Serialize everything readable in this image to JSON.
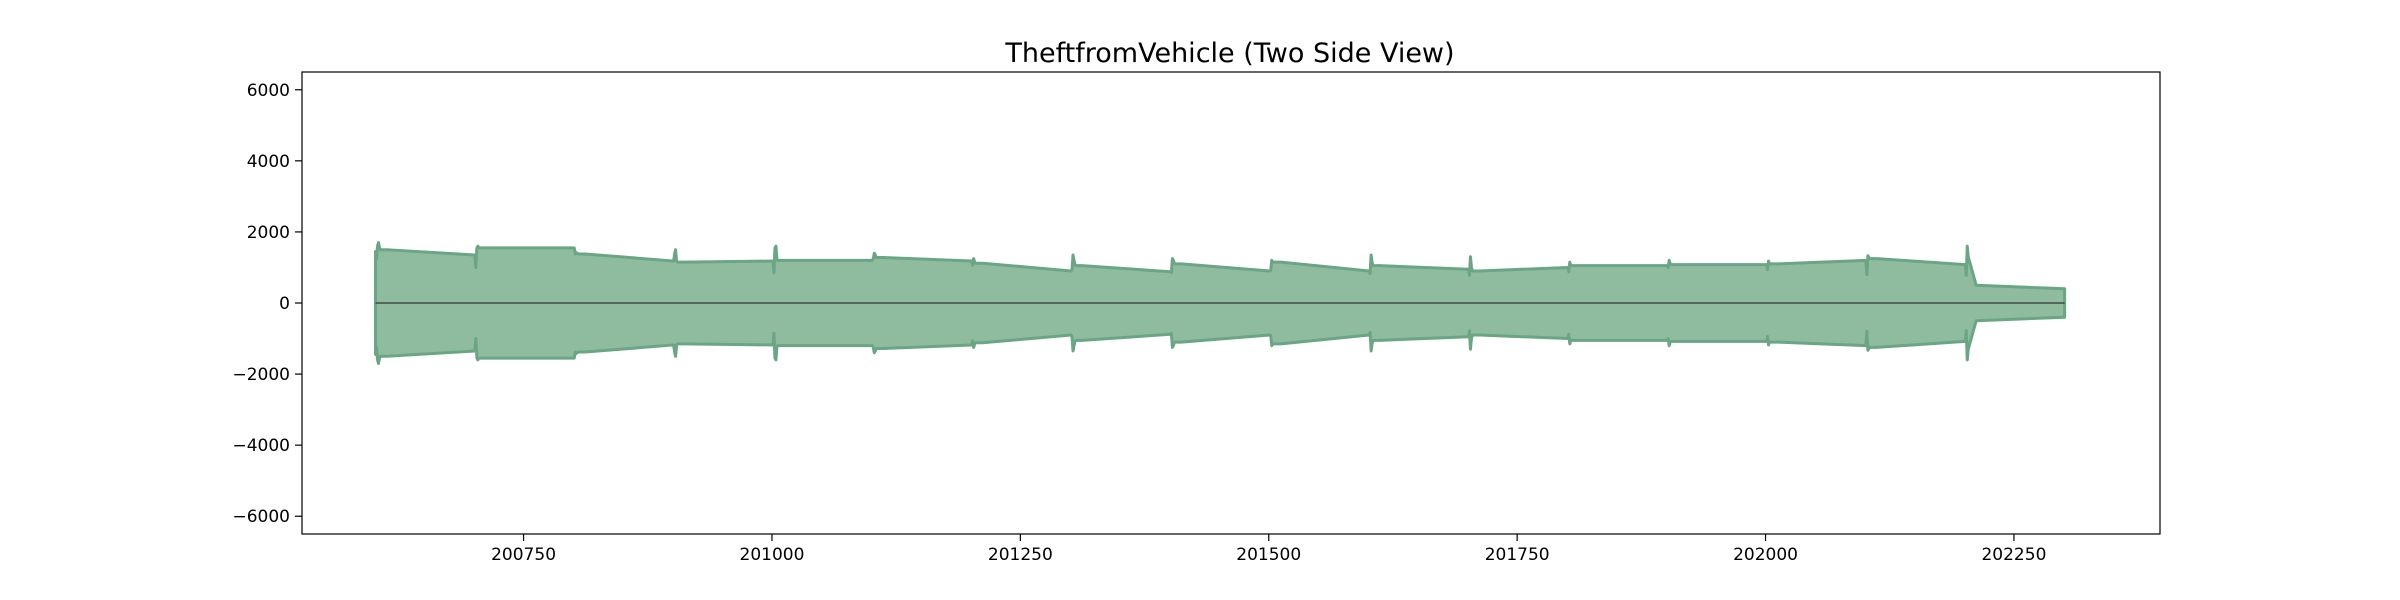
{
  "chart_data": {
    "type": "area",
    "title": "TheftfromVehicle (Two Side View)",
    "xlabel": "",
    "ylabel": "",
    "xlim": [
      200527,
      202397
    ],
    "ylim": [
      -6500,
      6500
    ],
    "x_ticks": [
      200750,
      201000,
      201250,
      201500,
      201750,
      202000,
      202250
    ],
    "y_ticks": [
      6000,
      4000,
      2000,
      0,
      -2000,
      -4000,
      -6000
    ],
    "y_tick_labels": [
      "6000",
      "4000",
      "2000",
      "0",
      "−2000",
      "−4000",
      "−6000"
    ],
    "grid": false,
    "legend": "none",
    "mirrored": true,
    "fill_color": "#8fbc9f",
    "edge_color": "#6aa584",
    "center_line_color": "#333333",
    "series": [
      {
        "x": [
          200601,
          200602,
          200603,
          200604,
          200605,
          200606,
          200607,
          200608,
          200609,
          200610,
          200611,
          200612,
          200701,
          200702,
          200703,
          200704,
          200705,
          200706,
          200707,
          200708,
          200709,
          200710,
          200711,
          200712,
          200801,
          200802,
          200803,
          200804,
          200805,
          200806,
          200807,
          200808,
          200809,
          200810,
          200811,
          200812,
          200901,
          200902,
          200903,
          200904,
          200905,
          200906,
          200907,
          200908,
          200909,
          200910,
          200911,
          200912,
          201001,
          201002,
          201003,
          201004,
          201005,
          201006,
          201007,
          201008,
          201009,
          201010,
          201011,
          201012,
          201101,
          201102,
          201103,
          201104,
          201105,
          201106,
          201107,
          201108,
          201109,
          201110,
          201111,
          201112,
          201201,
          201202,
          201203,
          201204,
          201205,
          201206,
          201207,
          201208,
          201209,
          201210,
          201211,
          201212,
          201301,
          201302,
          201303,
          201304,
          201305,
          201306,
          201307,
          201308,
          201309,
          201310,
          201311,
          201312,
          201401,
          201402,
          201403,
          201404,
          201405,
          201406,
          201407,
          201408,
          201409,
          201410,
          201411,
          201412,
          201501,
          201502,
          201503,
          201504,
          201505,
          201506,
          201507,
          201508,
          201509,
          201510,
          201511,
          201512,
          201601,
          201602,
          201603,
          201604,
          201605,
          201606,
          201607,
          201608,
          201609,
          201610,
          201611,
          201612,
          201701,
          201702,
          201703,
          201704,
          201705,
          201706,
          201707,
          201708,
          201709,
          201710,
          201711,
          201712,
          201801,
          201802,
          201803,
          201804,
          201805,
          201806,
          201807,
          201808,
          201809,
          201810,
          201811,
          201812,
          201901,
          201902,
          201903,
          201904,
          201905,
          201906,
          201907,
          201908,
          201909,
          201910,
          201911,
          201912,
          202001,
          202002,
          202003,
          202004,
          202005,
          202006,
          202007,
          202008,
          202009,
          202010,
          202011,
          202012,
          202101,
          202102,
          202103,
          202104,
          202105,
          202106,
          202107,
          202108,
          202109,
          202110,
          202111,
          202112,
          202201,
          202202,
          202203,
          202204,
          202205,
          202206,
          202207,
          202208,
          202209,
          202210,
          202211,
          202212,
          202301
        ],
        "values": [
          1450,
          1250,
          1600,
          1700,
          1550,
          1500,
          1500,
          1500,
          1500,
          1500,
          1500,
          1500,
          1350,
          1000,
          1550,
          1600,
          1550,
          1550,
          1550,
          1550,
          1550,
          1550,
          1550,
          1550,
          1550,
          1380,
          1420,
          1400,
          1380,
          1380,
          1380,
          1380,
          1380,
          1380,
          1380,
          1380,
          1180,
          1380,
          1500,
          1180,
          1150,
          1150,
          1150,
          1150,
          1150,
          1150,
          1150,
          1150,
          1180,
          850,
          1550,
          1600,
          1220,
          1200,
          1200,
          1200,
          1200,
          1200,
          1200,
          1200,
          1200,
          1250,
          1400,
          1350,
          1280,
          1280,
          1280,
          1280,
          1280,
          1280,
          1280,
          1280,
          1180,
          1060,
          1250,
          1150,
          1120,
          1120,
          1120,
          1120,
          1120,
          1120,
          1120,
          1120,
          900,
          950,
          1350,
          1200,
          1080,
          1050,
          1050,
          1050,
          1050,
          1050,
          1050,
          1050,
          880,
          850,
          1250,
          1200,
          1120,
          1100,
          1100,
          1100,
          1100,
          1100,
          1100,
          1100,
          900,
          920,
          1200,
          1150,
          1150,
          1150,
          1150,
          1150,
          1150,
          1150,
          1150,
          1150,
          900,
          830,
          1350,
          1150,
          1050,
          1050,
          1050,
          1050,
          1050,
          1050,
          1050,
          1050,
          950,
          780,
          1300,
          1000,
          900,
          900,
          900,
          900,
          900,
          900,
          900,
          900,
          1000,
          880,
          1150,
          1050,
          1050,
          1050,
          1050,
          1050,
          1050,
          1050,
          1050,
          1050,
          1050,
          1000,
          1200,
          1100,
          1080,
          1080,
          1080,
          1080,
          1080,
          1080,
          1080,
          1080,
          1080,
          940,
          1180,
          1100,
          1100,
          1100,
          1100,
          1100,
          1100,
          1100,
          1100,
          1100,
          1200,
          800,
          1330,
          1280,
          1250,
          1250,
          1250,
          1250,
          1250,
          1250,
          1250,
          1250,
          1080,
          780,
          1600,
          1300,
          1200,
          1100,
          1000,
          900,
          800,
          700,
          600,
          500,
          400
        ]
      }
    ]
  }
}
